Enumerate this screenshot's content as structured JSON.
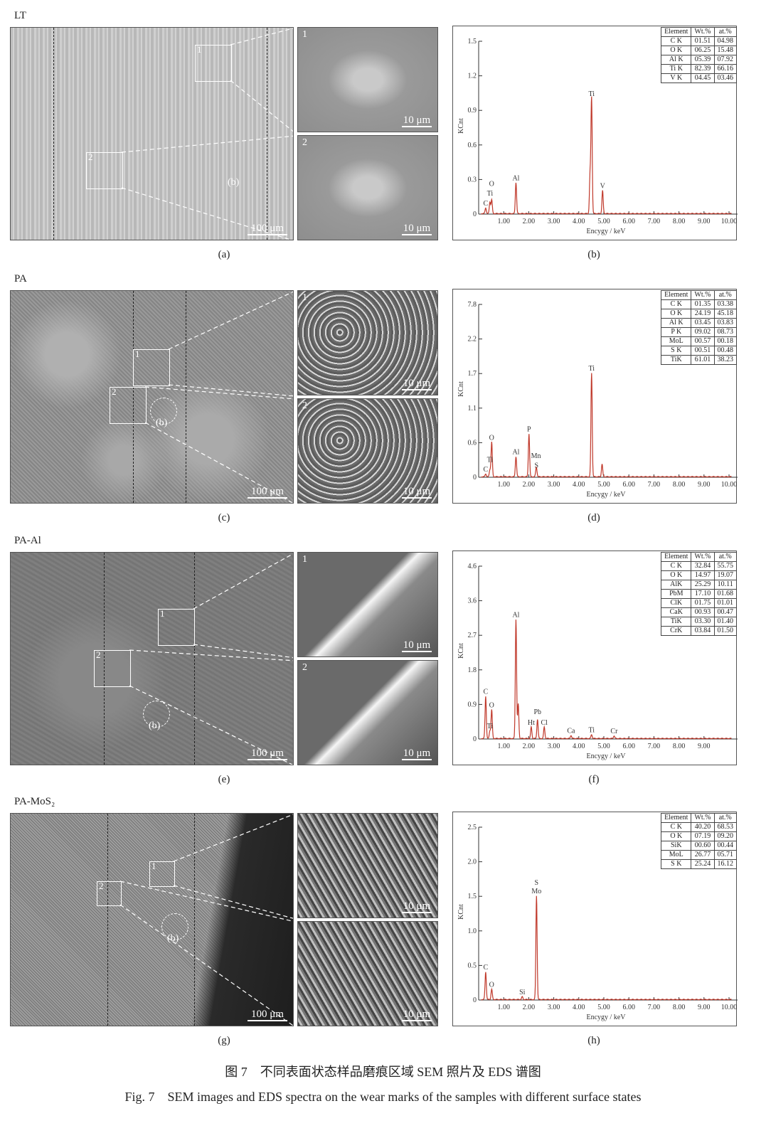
{
  "rows": [
    {
      "label": "LT",
      "sem_tag": "(a)",
      "eds_tag": "(b)",
      "box_labels": [
        "1",
        "2"
      ],
      "circle_label": "(b)",
      "scale_main": "100 μm",
      "scale_inset": "10 μm",
      "inset_labels": [
        "1",
        "2"
      ]
    },
    {
      "label": "PA",
      "sem_tag": "(c)",
      "eds_tag": "(d)",
      "box_labels": [
        "1",
        "2"
      ],
      "circle_label": "(b)",
      "scale_main": "100 μm",
      "scale_inset": "10 μm",
      "inset_labels": [
        "1",
        "2"
      ]
    },
    {
      "label": "PA-Al",
      "sem_tag": "(e)",
      "eds_tag": "(f)",
      "box_labels": [
        "1",
        "2"
      ],
      "circle_label": "(b)",
      "scale_main": "100 μm",
      "scale_inset": "10 μm",
      "inset_labels": [
        "1",
        "2"
      ]
    },
    {
      "label": "PA-MoS₂",
      "sem_tag": "(g)",
      "eds_tag": "(h)",
      "box_labels": [
        "1",
        "2"
      ],
      "circle_label": "(b)",
      "scale_main": "100 μm",
      "scale_inset": "10 μm",
      "inset_labels": [
        "",
        ""
      ]
    }
  ],
  "chart_data": [
    {
      "type": "line",
      "xlabel": "Encygy / keV",
      "ylabel": "KCnt",
      "series_color": "#c0392b",
      "xticks": [
        "1.00",
        "2.00",
        "3.00",
        "4.00",
        "5.00",
        "6.00",
        "7.00",
        "8.00",
        "9.00",
        "10.00"
      ],
      "yticks": [
        "0",
        "0.3",
        "0.6",
        "0.9",
        "1.2",
        "1.5"
      ],
      "peaks": [
        {
          "e": 0.28,
          "h": 0.05,
          "label": "C"
        },
        {
          "e": 0.45,
          "h": 0.1,
          "label": "Ti"
        },
        {
          "e": 0.52,
          "h": 0.12,
          "label": "O"
        },
        {
          "e": 1.49,
          "h": 0.27,
          "label": "Al"
        },
        {
          "e": 4.45,
          "h": 0.33,
          "label": ""
        },
        {
          "e": 4.51,
          "h": 1.0,
          "label": "Ti"
        },
        {
          "e": 4.95,
          "h": 0.2,
          "label": "V"
        }
      ],
      "table": {
        "headers": [
          "Element",
          "Wt.%",
          "at.%"
        ],
        "rows": [
          [
            "C K",
            "01.51",
            "04.98"
          ],
          [
            "O K",
            "06.25",
            "15.48"
          ],
          [
            "Al K",
            "05.39",
            "07.92"
          ],
          [
            "Ti K",
            "82.39",
            "66.16"
          ],
          [
            "V K",
            "04.45",
            "03.46"
          ]
        ]
      }
    },
    {
      "type": "line",
      "xlabel": "Encygy / keV",
      "ylabel": "KCnt",
      "series_color": "#c0392b",
      "xticks": [
        "1.00",
        "2.00",
        "3.00",
        "4.00",
        "5.00",
        "6.00",
        "7.00",
        "8.00",
        "9.00",
        "10.00"
      ],
      "yticks": [
        "0",
        "0.6",
        "1.1",
        "1.7",
        "2.2",
        "7.8"
      ],
      "peaks": [
        {
          "e": 0.28,
          "h": 0.05,
          "label": "C"
        },
        {
          "e": 0.45,
          "h": 0.12,
          "label": "Ti"
        },
        {
          "e": 0.52,
          "h": 0.6,
          "label": "O"
        },
        {
          "e": 1.49,
          "h": 0.35,
          "label": "Al"
        },
        {
          "e": 2.01,
          "h": 0.72,
          "label": "P"
        },
        {
          "e": 2.31,
          "h": 0.12,
          "label": "S"
        },
        {
          "e": 2.29,
          "h": 0.06,
          "label": "Mn"
        },
        {
          "e": 4.51,
          "h": 1.7,
          "label": "Ti"
        },
        {
          "e": 4.93,
          "h": 0.22,
          "label": ""
        }
      ],
      "table": {
        "headers": [
          "Element",
          "Wt.%",
          "at.%"
        ],
        "rows": [
          [
            "C K",
            "01.35",
            "03.38"
          ],
          [
            "O K",
            "24.19",
            "45.18"
          ],
          [
            "Al K",
            "03.45",
            "03.83"
          ],
          [
            "P K",
            "09.02",
            "08.73"
          ],
          [
            "MoL",
            "00.57",
            "00.18"
          ],
          [
            "S K",
            "00.51",
            "00.48"
          ],
          [
            "TiK",
            "61.01",
            "38.23"
          ]
        ]
      }
    },
    {
      "type": "line",
      "xlabel": "Encygy / keV",
      "ylabel": "KCnt",
      "series_color": "#c0392b",
      "xticks": [
        "1.00",
        "2.00",
        "3.00",
        "4.00",
        "5.00",
        "6.00",
        "7.00",
        "8.00",
        "9.00"
      ],
      "yticks": [
        "0",
        "0.9",
        "1.8",
        "2.7",
        "3.6",
        "4.6"
      ],
      "peaks": [
        {
          "e": 0.28,
          "h": 1.1,
          "label": "C"
        },
        {
          "e": 0.45,
          "h": 0.2,
          "label": "Ti"
        },
        {
          "e": 0.52,
          "h": 0.75,
          "label": "O"
        },
        {
          "e": 1.49,
          "h": 3.1,
          "label": "Al"
        },
        {
          "e": 1.58,
          "h": 0.9,
          "label": ""
        },
        {
          "e": 2.1,
          "h": 0.3,
          "label": "Ht"
        },
        {
          "e": 2.35,
          "h": 0.5,
          "label": "Pb"
        },
        {
          "e": 2.62,
          "h": 0.3,
          "label": "Cl"
        },
        {
          "e": 3.69,
          "h": 0.08,
          "label": "Ca"
        },
        {
          "e": 4.51,
          "h": 0.1,
          "label": "Ti"
        },
        {
          "e": 5.41,
          "h": 0.07,
          "label": "Cr"
        }
      ],
      "table": {
        "headers": [
          "Element",
          "Wt.%",
          "at.%"
        ],
        "rows": [
          [
            "C K",
            "32.84",
            "55.75"
          ],
          [
            "O K",
            "14.97",
            "19.07"
          ],
          [
            "AlK",
            "25.29",
            "10.11"
          ],
          [
            "PbM",
            "17.10",
            "01.68"
          ],
          [
            "ClK",
            "01.75",
            "01.01"
          ],
          [
            "CaK",
            "00.93",
            "00.47"
          ],
          [
            "TiK",
            "03.30",
            "01.40"
          ],
          [
            "CrK",
            "03.84",
            "01.50"
          ]
        ]
      }
    },
    {
      "type": "line",
      "xlabel": "Encygy / keV",
      "ylabel": "KCnt",
      "series_color": "#c0392b",
      "xticks": [
        "1.00",
        "2.00",
        "3.00",
        "4.00",
        "5.00",
        "6.00",
        "7.00",
        "8.00",
        "9.00",
        "10.00"
      ],
      "yticks": [
        "0",
        "0.5",
        "1.0",
        "1.5",
        "2.0",
        "2.5"
      ],
      "peaks": [
        {
          "e": 0.28,
          "h": 0.4,
          "label": "C"
        },
        {
          "e": 0.52,
          "h": 0.15,
          "label": "O"
        },
        {
          "e": 1.74,
          "h": 0.04,
          "label": "Si"
        },
        {
          "e": 2.31,
          "h": 1.5,
          "label": "S\nMo"
        }
      ],
      "table": {
        "headers": [
          "Element",
          "Wt.%",
          "at.%"
        ],
        "rows": [
          [
            "C K",
            "40.20",
            "68.53"
          ],
          [
            "O K",
            "07.19",
            "09.20"
          ],
          [
            "SiK",
            "00.60",
            "00.44"
          ],
          [
            "MoL",
            "26.77",
            "05.71"
          ],
          [
            "S K",
            "25.24",
            "16.12"
          ]
        ]
      }
    }
  ],
  "caption": {
    "cn": "图 7　不同表面状态样品磨痕区域 SEM 照片及 EDS 谱图",
    "en": "Fig. 7　SEM images and EDS spectra on the wear marks of the samples with different surface states"
  }
}
